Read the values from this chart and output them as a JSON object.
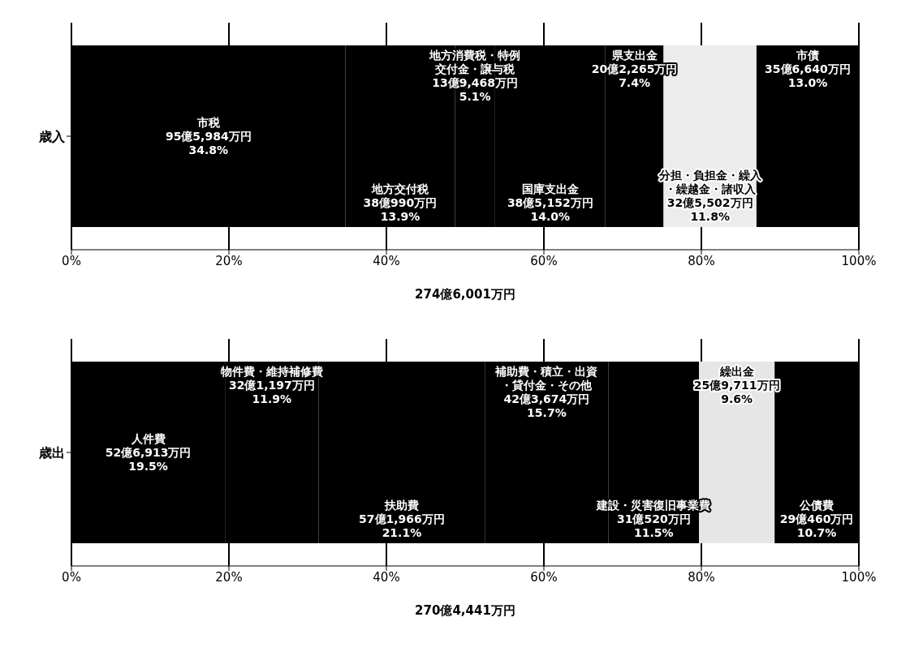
{
  "chart_data": [
    {
      "type": "bar",
      "orientation": "horizontal",
      "stacked": true,
      "categories": [
        "歳入"
      ],
      "xlabel": "274億6,001万円",
      "xlim": [
        0,
        100
      ],
      "xticks": [
        {
          "value": 0,
          "label": "0%"
        },
        {
          "value": 20,
          "label": "20%"
        },
        {
          "value": 40,
          "label": "40%"
        },
        {
          "value": 60,
          "label": "60%"
        },
        {
          "value": 80,
          "label": "80%"
        },
        {
          "value": 100,
          "label": "100%"
        }
      ],
      "grid": "x",
      "legend": false,
      "series": [
        {
          "name": "市税",
          "color": "#000000",
          "values": [
            34.8
          ],
          "value_labels": [
            "95億5,984万円\n34.8%"
          ]
        },
        {
          "name": "地方交付税",
          "color": "#000000",
          "values": [
            13.9
          ],
          "value_labels": [
            "38億990万円\n13.9%"
          ]
        },
        {
          "name": "地方消費税・特例交付金・譲与税",
          "color": "#000000",
          "values": [
            5.1
          ],
          "value_labels": [
            "13億9,468万円\n5.1%"
          ]
        },
        {
          "name": "国庫支出金",
          "color": "#000000",
          "values": [
            14.0
          ],
          "value_labels": [
            "38億5,152万円\n14.0%"
          ]
        },
        {
          "name": "県支出金",
          "color": "#000000",
          "values": [
            7.4
          ],
          "value_labels": [
            "20億2,265万円\n7.4%"
          ]
        },
        {
          "name": "分担・負担金・繰入・繰越金・諸収入",
          "color": "#ececec",
          "values": [
            11.8
          ],
          "value_labels": [
            "32億5,502万円\n11.8%"
          ]
        },
        {
          "name": "市債",
          "color": "#000000",
          "values": [
            13.0
          ],
          "value_labels": [
            "35億6,640万円\n13.0%"
          ]
        }
      ]
    },
    {
      "type": "bar",
      "orientation": "horizontal",
      "stacked": true,
      "categories": [
        "歳出"
      ],
      "xlabel": "270億4,441万円",
      "xlim": [
        0,
        100
      ],
      "xticks": [
        {
          "value": 0,
          "label": "0%"
        },
        {
          "value": 20,
          "label": "20%"
        },
        {
          "value": 40,
          "label": "40%"
        },
        {
          "value": 60,
          "label": "60%"
        },
        {
          "value": 80,
          "label": "80%"
        },
        {
          "value": 100,
          "label": "100%"
        }
      ],
      "grid": "x",
      "legend": false,
      "series": [
        {
          "name": "人件費",
          "color": "#000000",
          "values": [
            19.5
          ],
          "value_labels": [
            "52億6,913万円\n19.5%"
          ]
        },
        {
          "name": "物件費・維持補修費",
          "color": "#000000",
          "values": [
            11.9
          ],
          "value_labels": [
            "32億1,197万円\n11.9%"
          ]
        },
        {
          "name": "扶助費",
          "color": "#000000",
          "values": [
            21.1
          ],
          "value_labels": [
            "57億1,966万円\n21.1%"
          ]
        },
        {
          "name": "補助費・積立・出資・貸付金・その他",
          "color": "#000000",
          "values": [
            15.7
          ],
          "value_labels": [
            "42億3,674万円\n15.7%"
          ]
        },
        {
          "name": "建設・災害復旧事業費",
          "color": "#000000",
          "values": [
            11.5
          ],
          "value_labels": [
            "31億520万円\n11.5%"
          ]
        },
        {
          "name": "繰出金",
          "color": "#e6e6e6",
          "values": [
            9.6
          ],
          "value_labels": [
            "25億9,711万円\n9.6%"
          ]
        },
        {
          "name": "公債費",
          "color": "#000000",
          "values": [
            10.7
          ],
          "value_labels": [
            "29億460万円\n10.7%"
          ]
        }
      ]
    }
  ]
}
